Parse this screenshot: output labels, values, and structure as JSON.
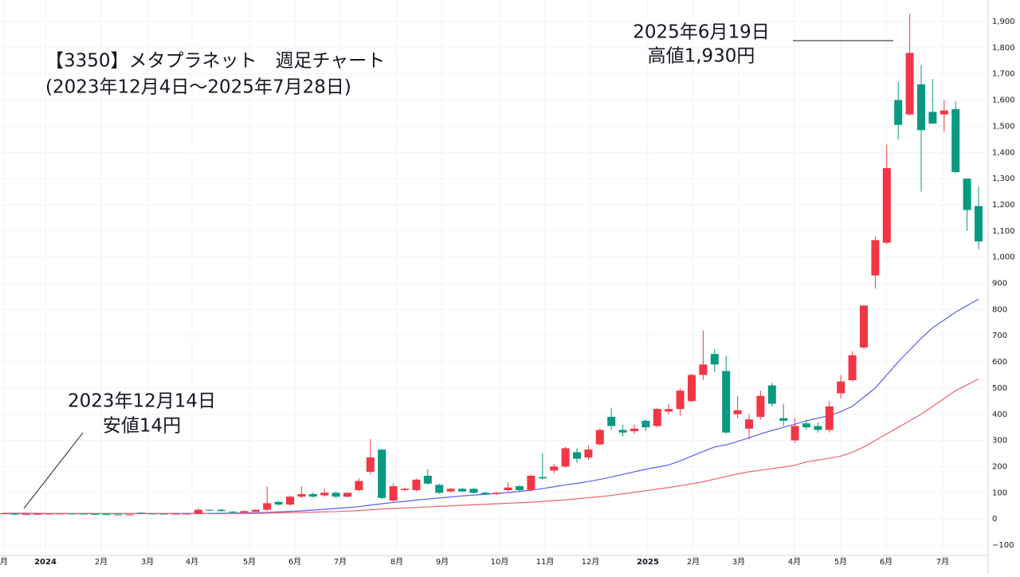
{
  "chart_data": {
    "type": "candlestick",
    "title": [
      "【3350】メタプラネット　週足チャート",
      "(2023年12月4日～2025年7月28日)"
    ],
    "annotations": [
      {
        "lines": [
          "2025年6月19日",
          "高値1,930円"
        ]
      },
      {
        "lines": [
          "2023年12月14日",
          "安値14円"
        ]
      }
    ],
    "up_color": "#f23645",
    "down_color": "#089981",
    "open": [
      20,
      22,
      17,
      18,
      19,
      20,
      21,
      20,
      19,
      18,
      17,
      16,
      24,
      21,
      20,
      19,
      20,
      20,
      35,
      35,
      28,
      25,
      28,
      35,
      65,
      55,
      85,
      95,
      90,
      100,
      85,
      110,
      180,
      265,
      70,
      110,
      110,
      165,
      130,
      105,
      115,
      115,
      100,
      95,
      110,
      125,
      110,
      160,
      185,
      200,
      255,
      235,
      285,
      390,
      340,
      335,
      375,
      355,
      410,
      420,
      450,
      550,
      630,
      565,
      400,
      345,
      390,
      510,
      385,
      300,
      365,
      355,
      340,
      480,
      530,
      655,
      930,
      1055,
      1600,
      1545,
      1660,
      1555,
      1545,
      1565,
      1300,
      1195
    ],
    "high": [
      24,
      23,
      20,
      20,
      21,
      22,
      23,
      22,
      21,
      20,
      19,
      18,
      26,
      22,
      21,
      21,
      21,
      40,
      37,
      38,
      30,
      31,
      36,
      125,
      70,
      90,
      125,
      100,
      115,
      105,
      100,
      155,
      305,
      265,
      135,
      120,
      155,
      190,
      135,
      118,
      120,
      118,
      105,
      102,
      140,
      130,
      170,
      250,
      210,
      275,
      270,
      280,
      345,
      425,
      360,
      360,
      380,
      425,
      440,
      500,
      555,
      720,
      650,
      625,
      470,
      400,
      490,
      520,
      440,
      385,
      380,
      370,
      450,
      550,
      640,
      815,
      1080,
      1430,
      1670,
      1930,
      1735,
      1680,
      1600,
      1595,
      1300,
      1270
    ],
    "low": [
      18,
      14,
      16,
      17,
      18,
      19,
      19,
      18,
      17,
      16,
      15,
      15,
      20,
      19,
      18,
      18,
      19,
      18,
      30,
      28,
      24,
      23,
      27,
      30,
      50,
      50,
      80,
      82,
      85,
      80,
      82,
      105,
      170,
      75,
      65,
      105,
      105,
      130,
      95,
      100,
      102,
      98,
      92,
      92,
      105,
      105,
      105,
      150,
      175,
      195,
      215,
      225,
      280,
      340,
      315,
      325,
      335,
      350,
      400,
      395,
      445,
      530,
      560,
      325,
      385,
      305,
      380,
      430,
      355,
      290,
      340,
      330,
      330,
      460,
      525,
      650,
      880,
      1050,
      1450,
      1540,
      1250,
      1510,
      1480,
      1320,
      1100,
      1030
    ],
    "close": [
      22,
      17,
      18,
      19,
      20,
      21,
      20,
      19,
      18,
      17,
      16,
      17,
      21,
      20,
      19,
      20,
      20,
      35,
      32,
      30,
      25,
      30,
      35,
      60,
      55,
      85,
      95,
      85,
      100,
      85,
      100,
      145,
      235,
      80,
      125,
      115,
      150,
      135,
      100,
      115,
      105,
      100,
      95,
      100,
      120,
      110,
      165,
      155,
      200,
      270,
      230,
      265,
      340,
      355,
      330,
      345,
      350,
      420,
      420,
      490,
      550,
      590,
      590,
      330,
      415,
      380,
      470,
      440,
      375,
      355,
      350,
      340,
      430,
      525,
      625,
      815,
      1065,
      1340,
      1505,
      1780,
      1485,
      1510,
      1560,
      1325,
      1180,
      1060
    ],
    "series": [
      {
        "color": "#5b5ef0",
        "values": [
          20,
          20,
          20,
          20,
          20,
          20,
          20,
          20,
          20,
          20,
          20,
          20,
          20,
          20,
          20,
          21,
          21,
          21,
          21,
          22,
          22,
          23,
          24,
          25,
          27,
          29,
          31,
          34,
          37,
          40,
          43,
          47,
          53,
          58,
          63,
          67,
          72,
          76,
          80,
          84,
          88,
          91,
          94,
          97,
          101,
          105,
          110,
          116,
          123,
          130,
          136,
          143,
          151,
          160,
          170,
          180,
          190,
          198,
          206,
          222,
          240,
          258,
          275,
          283,
          296,
          310,
          325,
          338,
          350,
          362,
          375,
          385,
          395,
          410,
          430,
          465,
          500,
          550,
          600,
          645,
          690,
          730,
          760,
          790,
          815,
          840
        ]
      },
      {
        "color": "#f0636b",
        "values": [
          22,
          22,
          22,
          22,
          21,
          21,
          21,
          21,
          21,
          21,
          21,
          21,
          21,
          21,
          21,
          20,
          20,
          20,
          20,
          20,
          20,
          21,
          21,
          22,
          23,
          24,
          25,
          26,
          27,
          28,
          30,
          32,
          35,
          38,
          40,
          42,
          44,
          46,
          48,
          50,
          52,
          54,
          56,
          58,
          60,
          62,
          64,
          67,
          70,
          73,
          77,
          81,
          85,
          90,
          96,
          102,
          108,
          114,
          120,
          127,
          134,
          142,
          152,
          162,
          172,
          180,
          186,
          192,
          198,
          205,
          218,
          225,
          232,
          240,
          255,
          275,
          300,
          325,
          350,
          375,
          400,
          430,
          460,
          490,
          512,
          535
        ]
      }
    ],
    "xticks": [
      "月",
      "2024",
      "2月",
      "3月",
      "4月",
      "5月",
      "6月",
      "7月",
      "8月",
      "9月",
      "10月",
      "11月",
      "12月",
      "2025",
      "2月",
      "3月",
      "4月",
      "5月",
      "6月",
      "7月"
    ],
    "ylim": [
      -100,
      1900
    ],
    "yticks": [
      {
        "value": -100,
        "label": "−100"
      },
      0,
      100,
      200,
      300,
      400,
      500,
      600,
      700,
      800,
      900,
      {
        "value": 1000,
        "label": "1,000"
      },
      {
        "value": 1100,
        "label": "1,100"
      },
      {
        "value": 1200,
        "label": "1,200"
      },
      {
        "value": 1300,
        "label": "1,300"
      },
      {
        "value": 1400,
        "label": "1,400"
      },
      {
        "value": 1500,
        "label": "1,500"
      },
      {
        "value": 1600,
        "label": "1,600"
      },
      {
        "value": 1700,
        "label": "1,700"
      },
      {
        "value": 1800,
        "label": "1,800"
      },
      {
        "value": 1900,
        "label": "1,900"
      }
    ],
    "grid": true
  }
}
